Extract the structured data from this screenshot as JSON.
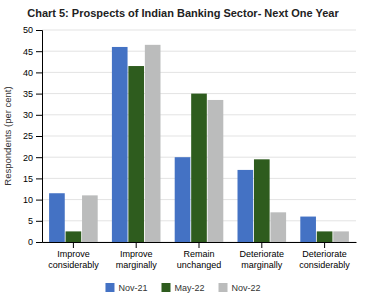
{
  "chart_data": {
    "type": "bar",
    "title": "Chart 5: Prospects of Indian Banking Sector- Next One Year",
    "categories": [
      "Improve\nconsiderably",
      "Improve\nmarginally",
      "Remain\nunchanged",
      "Deteriorate\nmarginally",
      "Deteriorate\nconsiderably"
    ],
    "series": [
      {
        "name": "Nov-21",
        "color": "#4472C4",
        "values": [
          11.5,
          46,
          20,
          17,
          6
        ]
      },
      {
        "name": "May-22",
        "color": "#2E5C1E",
        "values": [
          2.5,
          41.5,
          35,
          19.5,
          2.5
        ]
      },
      {
        "name": "Nov-22",
        "color": "#BBBCBC",
        "values": [
          11,
          46.5,
          33.5,
          7,
          2.5
        ]
      }
    ],
    "ylabel": "Respondents (per cent)",
    "ylim": [
      0,
      50
    ],
    "yticks": [
      0,
      5,
      10,
      15,
      20,
      25,
      30,
      35,
      40,
      45,
      50
    ],
    "grid": true,
    "legend": "bottom"
  }
}
